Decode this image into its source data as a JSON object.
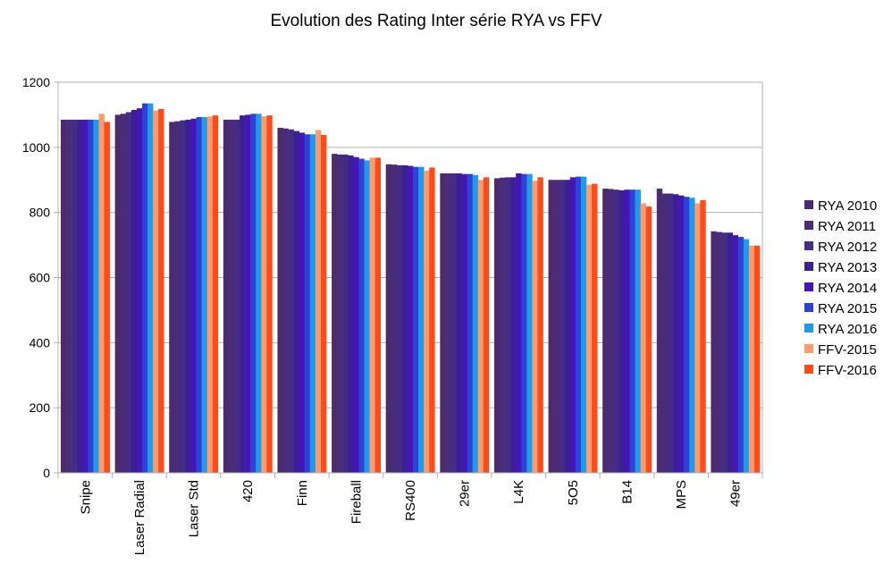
{
  "chart_data": {
    "type": "bar",
    "title": "Evolution des Rating Inter série RYA vs FFV",
    "xlabel": "",
    "ylabel": "",
    "ylim": [
      0,
      1200
    ],
    "yticks": [
      0,
      200,
      400,
      600,
      800,
      1000,
      1200
    ],
    "grid": true,
    "legend_position": "right",
    "categories": [
      "Snipe",
      "Laser Radial",
      "Laser Std",
      "420",
      "Finn",
      "Fireball",
      "RS400",
      "29er",
      "L4K",
      "5O5",
      "B14",
      "MPS",
      "49er"
    ],
    "series": [
      {
        "name": "RYA 2010",
        "color": "#4B2B6E",
        "values": [
          1085,
          1100,
          1078,
          1085,
          1060,
          980,
          948,
          920,
          905,
          900,
          873,
          873,
          742
        ]
      },
      {
        "name": "RYA 2011",
        "color": "#4A2C7A",
        "values": [
          1085,
          1103,
          1080,
          1085,
          1058,
          978,
          947,
          920,
          907,
          900,
          872,
          858,
          740
        ]
      },
      {
        "name": "RYA 2012",
        "color": "#452D85",
        "values": [
          1085,
          1108,
          1083,
          1085,
          1055,
          978,
          945,
          920,
          908,
          900,
          870,
          858,
          738
        ]
      },
      {
        "name": "RYA 2013",
        "color": "#3D1F95",
        "values": [
          1085,
          1115,
          1085,
          1098,
          1050,
          975,
          945,
          920,
          908,
          900,
          868,
          856,
          738
        ]
      },
      {
        "name": "RYA 2014",
        "color": "#4416B8",
        "values": [
          1085,
          1120,
          1088,
          1100,
          1045,
          970,
          943,
          918,
          920,
          908,
          870,
          852,
          730
        ]
      },
      {
        "name": "RYA 2015",
        "color": "#2F42D8",
        "values": [
          1085,
          1135,
          1093,
          1103,
          1040,
          965,
          940,
          918,
          918,
          910,
          870,
          848,
          725
        ]
      },
      {
        "name": "RYA 2016",
        "color": "#1E9BEA",
        "values": [
          1085,
          1135,
          1093,
          1103,
          1040,
          960,
          940,
          915,
          918,
          910,
          870,
          845,
          718
        ]
      },
      {
        "name": "FFV-2015",
        "color": "#FF9A6A",
        "values": [
          1103,
          1113,
          1095,
          1095,
          1053,
          968,
          928,
          900,
          897,
          885,
          828,
          828,
          698
        ]
      },
      {
        "name": "FFV-2016",
        "color": "#FF4A1C",
        "values": [
          1078,
          1118,
          1098,
          1098,
          1038,
          968,
          938,
          908,
          908,
          888,
          818,
          838,
          698
        ]
      }
    ]
  }
}
